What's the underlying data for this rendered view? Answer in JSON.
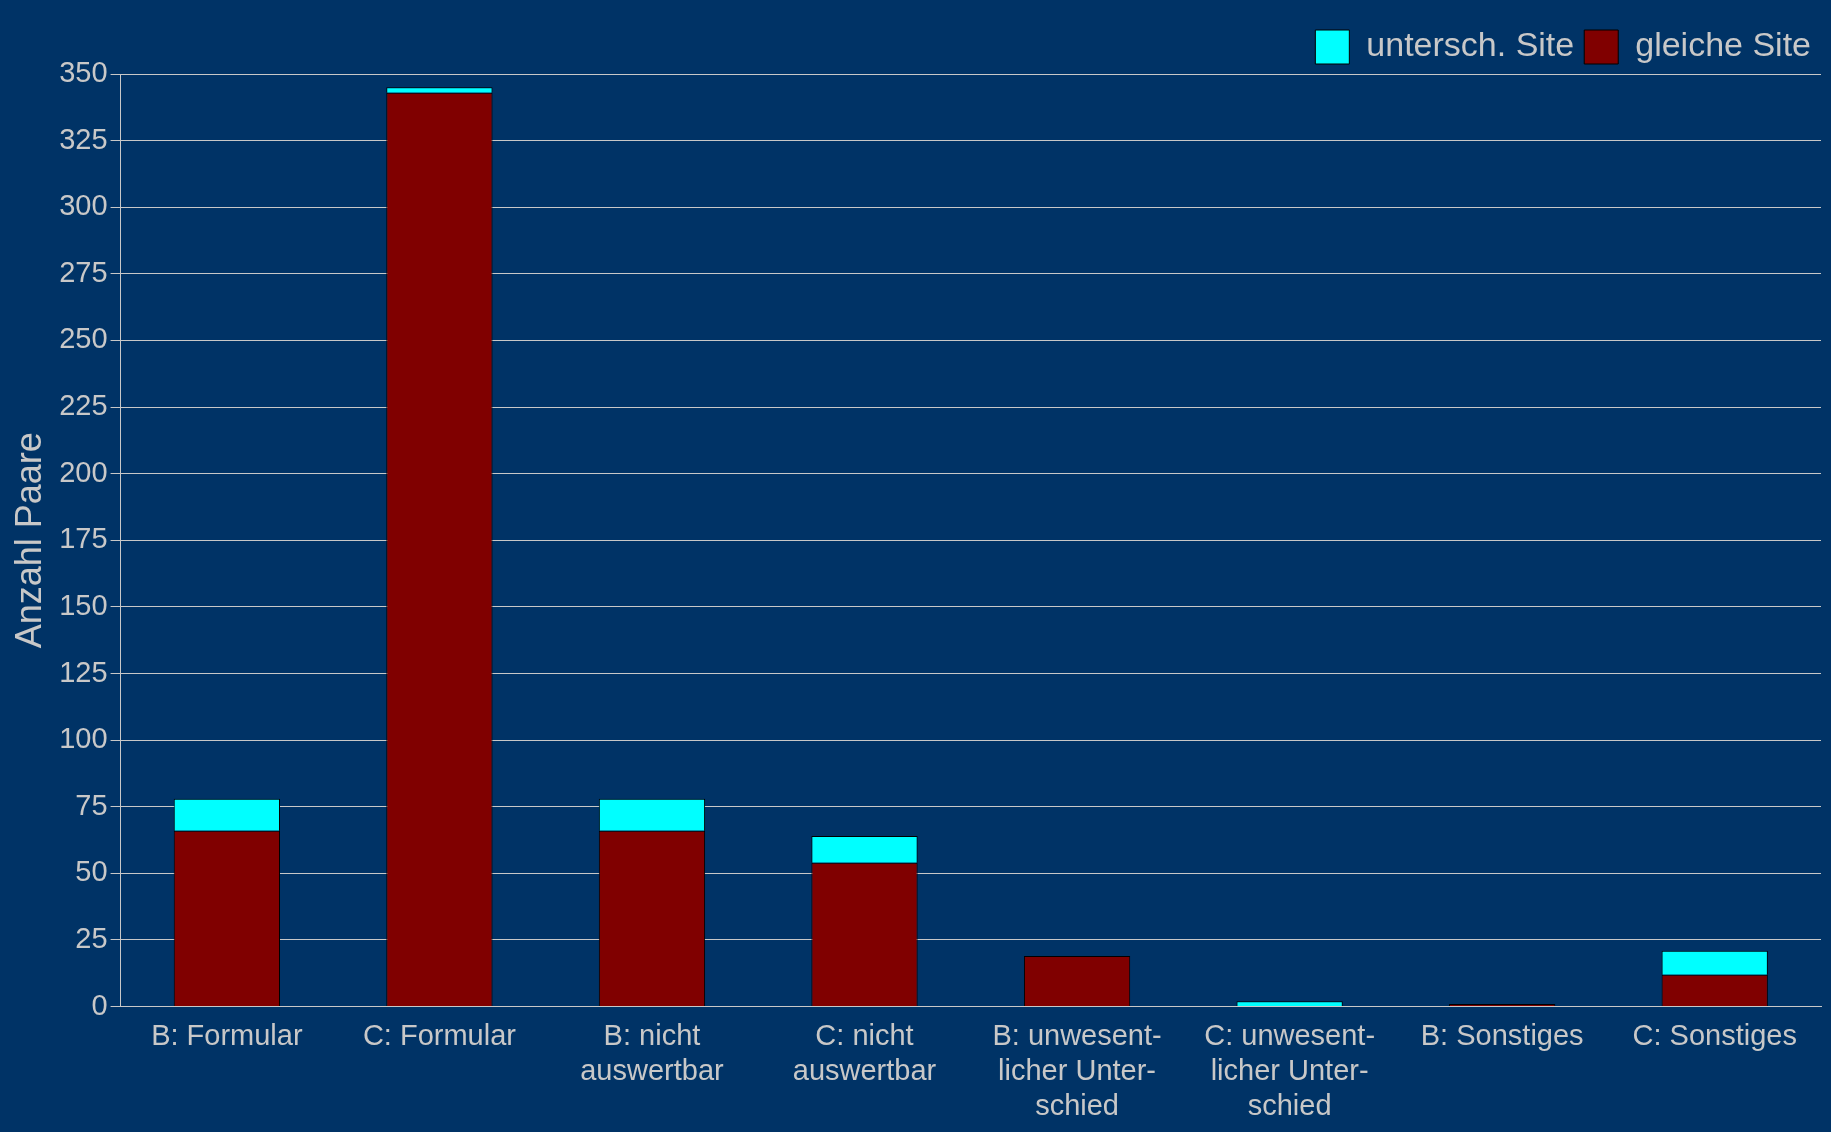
{
  "chart_data": {
    "type": "bar",
    "stacked": true,
    "ylabel": "Anzahl Paare",
    "categories": [
      "B: Formular",
      "C: Formular",
      "B: nicht auswertbar",
      "C: nicht auswertbar",
      "B: unwesent-licher Unter-schied",
      "C: unwesent-licher Unter-schied",
      "B: Sonstiges",
      "C: Sonstiges"
    ],
    "series": [
      {
        "name": "gleiche Site",
        "color": "#800000",
        "values": [
          66,
          343,
          66,
          54,
          19,
          0,
          1,
          12
        ]
      },
      {
        "name": "untersch. Site",
        "color": "#00ffff",
        "values": [
          12,
          2,
          12,
          10,
          0,
          2,
          0,
          9
        ]
      }
    ],
    "ylim": [
      0,
      350
    ],
    "yticks": [
      0,
      25,
      50,
      75,
      100,
      125,
      150,
      175,
      200,
      225,
      250,
      275,
      300,
      325,
      350
    ],
    "grid": "y",
    "legend": "top right"
  }
}
